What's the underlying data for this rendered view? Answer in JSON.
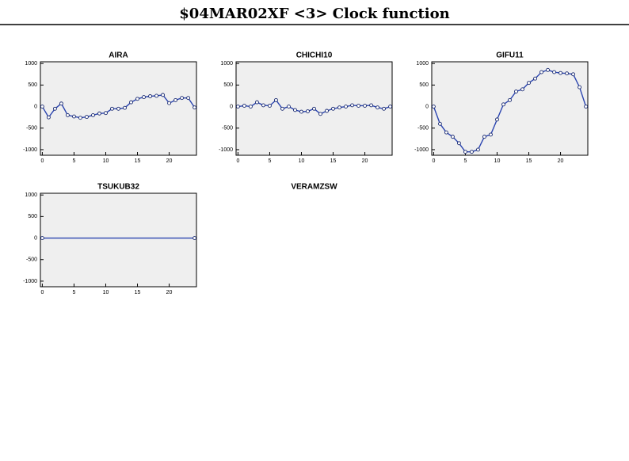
{
  "title": "$04MAR02XF <3>  Clock function",
  "chart_data": [
    {
      "type": "line",
      "title": "AIRA",
      "x": [
        0,
        1,
        2,
        3,
        4,
        5,
        6,
        7,
        8,
        9,
        10,
        11,
        12,
        13,
        14,
        15,
        16,
        17,
        18,
        19,
        20,
        21,
        22,
        23,
        24
      ],
      "series": [
        {
          "color": "#2a44b0",
          "values": [
            0,
            -250,
            -50,
            70,
            -200,
            -230,
            -260,
            -240,
            -200,
            -160,
            -150,
            -50,
            -50,
            -30,
            100,
            180,
            220,
            240,
            250,
            270,
            80,
            150,
            200,
            200,
            -20
          ]
        }
      ],
      "xlim": [
        -0.3,
        24.3
      ],
      "ylim": [
        -1130,
        1040
      ],
      "xticks": [
        0,
        5,
        10,
        15,
        20
      ],
      "yticks": [
        -1000,
        -500,
        0,
        500,
        1000
      ]
    },
    {
      "type": "line",
      "title": "CHICHI10",
      "x": [
        0,
        1,
        2,
        3,
        4,
        5,
        6,
        7,
        8,
        9,
        10,
        11,
        12,
        13,
        14,
        15,
        16,
        17,
        18,
        19,
        20,
        21,
        22,
        23,
        24
      ],
      "series": [
        {
          "color": "#2a44b0",
          "values": [
            0,
            20,
            0,
            100,
            30,
            20,
            150,
            -50,
            0,
            -80,
            -120,
            -110,
            -50,
            -170,
            -100,
            -50,
            -20,
            0,
            30,
            20,
            20,
            30,
            -20,
            -50,
            0
          ]
        }
      ],
      "xlim": [
        -0.3,
        24.3
      ],
      "ylim": [
        -1130,
        1040
      ],
      "xticks": [
        0,
        5,
        10,
        15,
        20
      ],
      "yticks": [
        -1000,
        -500,
        0,
        500,
        1000
      ]
    },
    {
      "type": "line",
      "title": "GIFU11",
      "x": [
        0,
        1,
        2,
        3,
        4,
        5,
        6,
        7,
        8,
        9,
        10,
        11,
        12,
        13,
        14,
        15,
        16,
        17,
        18,
        19,
        20,
        21,
        22,
        23,
        24
      ],
      "series": [
        {
          "color": "#2a44b0",
          "values": [
            0,
            -400,
            -600,
            -700,
            -850,
            -1050,
            -1050,
            -1000,
            -700,
            -650,
            -300,
            50,
            150,
            350,
            400,
            550,
            650,
            800,
            850,
            800,
            780,
            770,
            750,
            450,
            0
          ]
        }
      ],
      "xlim": [
        -0.3,
        24.3
      ],
      "ylim": [
        -1130,
        1040
      ],
      "xticks": [
        0,
        5,
        10,
        15,
        20
      ],
      "yticks": [
        -1000,
        -500,
        0,
        500,
        1000
      ]
    },
    {
      "type": "line",
      "title": "TSUKUB32",
      "x": [
        0,
        24
      ],
      "series": [
        {
          "color": "#2a44b0",
          "values": [
            0,
            0
          ]
        }
      ],
      "xlim": [
        -0.3,
        24.3
      ],
      "ylim": [
        -1130,
        1040
      ],
      "xticks": [
        0,
        5,
        10,
        15,
        20
      ],
      "yticks": [
        -1000,
        -500,
        0,
        500,
        1000
      ]
    },
    {
      "type": "line",
      "title": "VERAMZSW"
    }
  ]
}
